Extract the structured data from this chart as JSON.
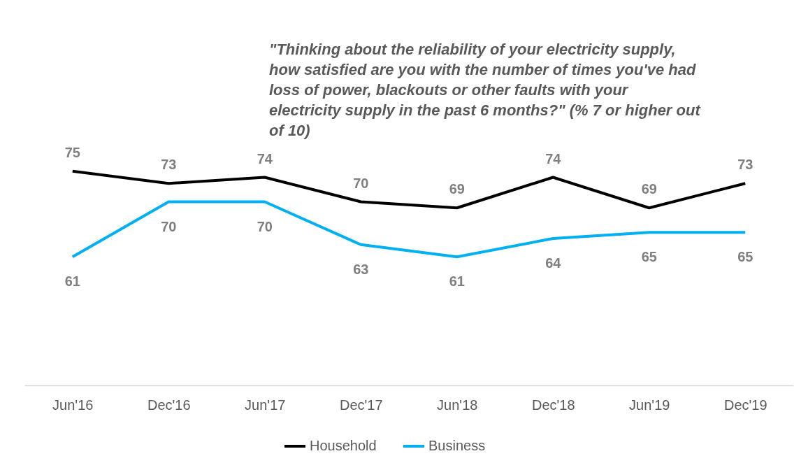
{
  "chart_data": {
    "type": "line",
    "title": "\"Thinking about the reliability of your electricity supply, how satisfied are you with the number of times you've had loss of power, blackouts or other faults with your electricity supply in the past 6 months?\" (% 7 or higher out of 10)",
    "categories": [
      "Jun'16",
      "Dec'16",
      "Jun'17",
      "Dec'17",
      "Jun'18",
      "Dec'18",
      "Jun'19",
      "Dec'19"
    ],
    "series": [
      {
        "name": "Household",
        "color": "#000000",
        "values": [
          75,
          73,
          74,
          70,
          69,
          74,
          69,
          73
        ]
      },
      {
        "name": "Business",
        "color": "#00b0f0",
        "values": [
          61,
          70,
          70,
          63,
          61,
          64,
          65,
          65
        ]
      }
    ],
    "data_labels": true,
    "legend": "bottom",
    "marker": "none",
    "line_style": "solid"
  }
}
